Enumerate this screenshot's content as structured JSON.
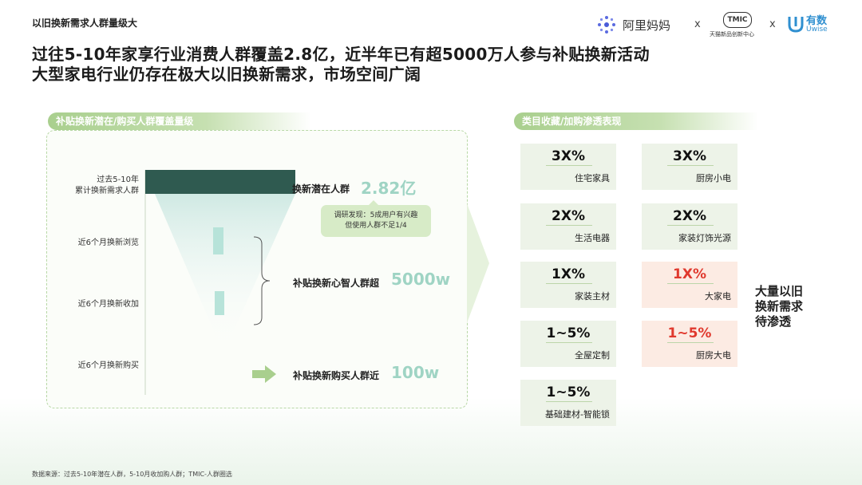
{
  "header": {
    "section_title": "以旧换新需求人群量级大",
    "logo_alimama": "阿里妈妈",
    "sep": "x",
    "logo_tmic": "TMIC",
    "logo_tmic_sub": "天猫新品创新中心",
    "logo_uwise_cn": "有数",
    "logo_uwise_en": "Uwise"
  },
  "headline": {
    "line1": "过往5-10年家享行业消费人群覆盖2.8亿，近半年已有超5000万人参与补贴换新活动",
    "line2": "大型家电行业仍存在极大以旧换新需求，市场空间广阔"
  },
  "left_panel": {
    "tag": "补贴换新潜在/购买人群覆盖量级",
    "rows": [
      {
        "label_line1": "过去5-10年",
        "label_line2": "累计换新需求人群"
      },
      {
        "label_line1": "近6个月换新浏览",
        "label_line2": ""
      },
      {
        "label_line1": "近6个月换新收加",
        "label_line2": ""
      },
      {
        "label_line1": "近6个月换新购买",
        "label_line2": ""
      }
    ],
    "result1_label": "换新潜在人群",
    "result1_value": "2.82亿",
    "survey_line1": "调研发现：5成用户有兴趣",
    "survey_line2": "但使用人群不足1/4",
    "result2_label": "补贴换新心智人群超",
    "result2_value": "5000w",
    "result3_label": "补贴换新购买人群近",
    "result3_value": "100w"
  },
  "right_panel": {
    "tag": "类目收藏/加购渗透表现",
    "cards": [
      {
        "pct": "3X%",
        "name": "住宅家具"
      },
      {
        "pct": "3X%",
        "name": "厨房小电"
      },
      {
        "pct": "2X%",
        "name": "生活电器"
      },
      {
        "pct": "2X%",
        "name": "家装灯饰光源"
      },
      {
        "pct": "1X%",
        "name": "家装主材"
      },
      {
        "pct": "1X%",
        "name": "大家电"
      },
      {
        "pct": "1~5%",
        "name": "全屋定制"
      },
      {
        "pct": "1~5%",
        "name": "厨房大电"
      },
      {
        "pct": "1~5%",
        "name": "基础建材-智能锁"
      }
    ],
    "side_line1": "大量以旧",
    "side_line2": "换新需求",
    "side_line3": "待渗透"
  },
  "footer": {
    "source": "数据来源：过去5-10年潜在人群，5-10月收加购人群；TMIC-人群圈选"
  },
  "colors": {
    "accent_green": "#a9cf8e",
    "funnel_dark": "#2f5a50",
    "teal_value": "#9fd4c4",
    "highlight_red": "#e0392e",
    "card_green": "#edf3e8",
    "card_red": "#fcebe3"
  }
}
